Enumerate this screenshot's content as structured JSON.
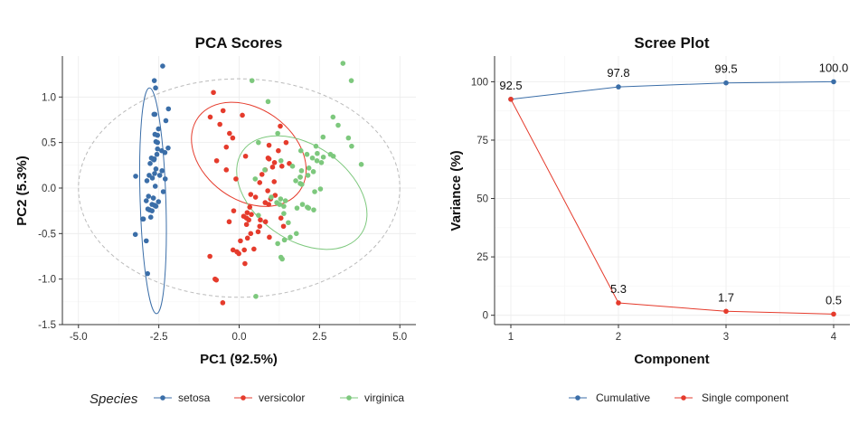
{
  "chart_data": [
    {
      "type": "scatter",
      "title": "PCA Scores",
      "xlabel": "PC1 (92.5%)",
      "ylabel": "PC2 (5.3%)",
      "xlim": [
        -5.5,
        5.5
      ],
      "ylim": [
        -1.5,
        1.45
      ],
      "xticks": [
        "-5.0",
        "-2.5",
        "0.0",
        "2.5",
        "5.0"
      ],
      "yticks": [
        "-1.5",
        "-1.0",
        "-0.5",
        "0.0",
        "0.5",
        "1.0"
      ],
      "grid": true,
      "legend": {
        "title": "Species",
        "placement": "bottom"
      },
      "overall_ellipse": {
        "center": [
          0.0,
          0.0
        ],
        "rx": 5.0,
        "ry": 1.2,
        "angle": 0,
        "style": "dashed",
        "color": "#bbbbbb"
      },
      "series": [
        {
          "name": "setosa",
          "color": "#3b6ea8",
          "ellipse": {
            "center": [
              -2.68,
              -0.14
            ],
            "rx": 0.4,
            "ry": 1.24,
            "angle": 1.8
          },
          "points": [
            [
              -2.68,
              0.32
            ],
            [
              -2.71,
              -0.18
            ],
            [
              -2.89,
              -0.14
            ],
            [
              -2.75,
              -0.32
            ],
            [
              -2.73,
              0.33
            ],
            [
              -2.28,
              0.74
            ],
            [
              -2.82,
              -0.09
            ],
            [
              -2.63,
              0.16
            ],
            [
              -2.89,
              -0.58
            ],
            [
              -2.67,
              -0.11
            ],
            [
              -2.51,
              0.65
            ],
            [
              -2.61,
              0.02
            ],
            [
              -2.79,
              -0.24
            ],
            [
              -3.23,
              -0.51
            ],
            [
              -2.64,
              1.18
            ],
            [
              -2.38,
              1.34
            ],
            [
              -2.62,
              0.81
            ],
            [
              -2.65,
              0.31
            ],
            [
              -2.2,
              0.87
            ],
            [
              -2.59,
              0.51
            ],
            [
              -2.31,
              0.39
            ],
            [
              -2.54,
              0.43
            ],
            [
              -3.22,
              0.13
            ],
            [
              -2.3,
              0.1
            ],
            [
              -2.36,
              -0.04
            ],
            [
              -2.51,
              -0.15
            ],
            [
              -2.47,
              0.14
            ],
            [
              -2.56,
              0.37
            ],
            [
              -2.64,
              0.32
            ],
            [
              -2.63,
              -0.19
            ],
            [
              -2.59,
              -0.2
            ],
            [
              -2.41,
              0.41
            ],
            [
              -2.65,
              0.81
            ],
            [
              -2.6,
              1.1
            ],
            [
              -2.67,
              -0.11
            ],
            [
              -2.87,
              0.08
            ],
            [
              -2.62,
              0.59
            ],
            [
              -2.8,
              0.14
            ],
            [
              -2.98,
              -0.34
            ],
            [
              -2.59,
              0.21
            ],
            [
              -2.77,
              0.27
            ],
            [
              -2.85,
              -0.94
            ],
            [
              -3,
              -0.34
            ],
            [
              -2.4,
              0.19
            ],
            [
              -2.21,
              0.44
            ],
            [
              -2.71,
              -0.25
            ],
            [
              -2.54,
              0.5
            ],
            [
              -2.84,
              -0.23
            ],
            [
              -2.54,
              0.58
            ],
            [
              -2.7,
              0.11
            ]
          ]
        },
        {
          "name": "versicolor",
          "color": "#e53b2c",
          "ellipse": {
            "center": [
              0.3,
              0.37
            ],
            "rx": 1.95,
            "ry": 0.5,
            "angle": -36
          },
          "points": [
            [
              1.28,
              0.68
            ],
            [
              0.93,
              0.32
            ],
            [
              1.46,
              0.5
            ],
            [
              0.18,
              -0.83
            ],
            [
              1.09,
              0.07
            ],
            [
              0.64,
              -0.42
            ],
            [
              1.1,
              0.28
            ],
            [
              -0.75,
              -1.0
            ],
            [
              1.04,
              0.23
            ],
            [
              -0.01,
              -0.72
            ],
            [
              -0.51,
              -1.26
            ],
            [
              0.51,
              -0.1
            ],
            [
              0.26,
              -0.55
            ],
            [
              0.98,
              -0.12
            ],
            [
              -0.17,
              -0.25
            ],
            [
              0.93,
              0.47
            ],
            [
              0.66,
              -0.35
            ],
            [
              0.23,
              -0.33
            ],
            [
              0.94,
              -0.54
            ],
            [
              0.04,
              -0.58
            ],
            [
              1.12,
              -0.08
            ],
            [
              0.36,
              -0.07
            ],
            [
              1.3,
              -0.33
            ],
            [
              0.92,
              -0.18
            ],
            [
              0.71,
              0.15
            ],
            [
              0.9,
              0.33
            ],
            [
              1.33,
              0.24
            ],
            [
              1.56,
              0.27
            ],
            [
              0.81,
              -0.16
            ],
            [
              -0.31,
              -0.37
            ],
            [
              -0.07,
              -0.7
            ],
            [
              -0.19,
              -0.68
            ],
            [
              0.14,
              -0.31
            ],
            [
              1.38,
              -0.42
            ],
            [
              0.59,
              -0.48
            ],
            [
              0.81,
              0.2
            ],
            [
              1.22,
              0.41
            ],
            [
              0.82,
              -0.37
            ],
            [
              0.25,
              -0.27
            ],
            [
              0.16,
              -0.68
            ],
            [
              0.46,
              -0.67
            ],
            [
              0.89,
              -0.03
            ],
            [
              0.23,
              -0.4
            ],
            [
              -0.71,
              -1.01
            ],
            [
              0.36,
              -0.5
            ],
            [
              0.33,
              -0.21
            ],
            [
              0.38,
              -0.29
            ],
            [
              0.64,
              0.06
            ],
            [
              -0.91,
              -0.75
            ],
            [
              0.3,
              -0.35
            ],
            [
              -0.8,
              1.05
            ],
            [
              -0.5,
              0.85
            ],
            [
              -0.3,
              0.6
            ],
            [
              -0.9,
              0.78
            ],
            [
              -0.6,
              0.7
            ],
            [
              -0.4,
              0.45
            ],
            [
              -0.2,
              0.55
            ],
            [
              0.1,
              0.8
            ],
            [
              -0.7,
              0.3
            ],
            [
              -0.4,
              0.2
            ],
            [
              -0.1,
              0.1
            ],
            [
              0.2,
              0.35
            ]
          ]
        },
        {
          "name": "virginica",
          "color": "#7dc87d",
          "ellipse": {
            "center": [
              1.95,
              -0.05
            ],
            "rx": 2.25,
            "ry": 0.52,
            "angle": -35
          },
          "points": [
            [
              2.53,
              -0.01
            ],
            [
              1.41,
              -0.57
            ],
            [
              2.62,
              0.34
            ],
            [
              1.97,
              -0.18
            ],
            [
              2.35,
              -0.04
            ],
            [
              3.4,
              0.55
            ],
            [
              0.52,
              -1.19
            ],
            [
              2.93,
              0.35
            ],
            [
              2.32,
              -0.24
            ],
            [
              2.92,
              0.78
            ],
            [
              1.66,
              0.24
            ],
            [
              1.8,
              -0.22
            ],
            [
              2.17,
              0.22
            ],
            [
              1.34,
              -0.78
            ],
            [
              1.59,
              -0.54
            ],
            [
              1.9,
              0.12
            ],
            [
              1.95,
              0.04
            ],
            [
              3.49,
              1.18
            ],
            [
              3.8,
              0.26
            ],
            [
              1.3,
              -0.76
            ],
            [
              2.43,
              0.38
            ],
            [
              1.2,
              -0.61
            ],
            [
              3.5,
              0.46
            ],
            [
              1.39,
              -0.2
            ],
            [
              2.28,
              0.33
            ],
            [
              2.61,
              0.56
            ],
            [
              1.26,
              -0.18
            ],
            [
              1.29,
              -0.12
            ],
            [
              2.12,
              -0.21
            ],
            [
              2.39,
              0.46
            ],
            [
              2.84,
              0.37
            ],
            [
              3.23,
              1.37
            ],
            [
              2.16,
              -0.22
            ],
            [
              1.44,
              -0.14
            ],
            [
              1.78,
              -0.5
            ],
            [
              3.08,
              0.69
            ],
            [
              2.14,
              0.14
            ],
            [
              1.9,
              0.05
            ],
            [
              1.17,
              -0.16
            ],
            [
              2.11,
              0.37
            ],
            [
              2.31,
              0.18
            ],
            [
              1.92,
              0.41
            ],
            [
              1.41,
              -0.57
            ],
            [
              2.56,
              0.28
            ],
            [
              2.42,
              0.3
            ],
            [
              1.94,
              0.19
            ],
            [
              1.53,
              -0.38
            ],
            [
              1.76,
              0.08
            ],
            [
              1.9,
              0.12
            ],
            [
              1.39,
              -0.28
            ],
            [
              0.4,
              1.18
            ],
            [
              0.9,
              0.95
            ],
            [
              1.2,
              0.6
            ],
            [
              0.6,
              0.5
            ],
            [
              0.5,
              0.1
            ],
            [
              0.8,
              0.2
            ],
            [
              1.3,
              0.3
            ],
            [
              1.0,
              -0.1
            ],
            [
              0.6,
              -0.3
            ]
          ]
        }
      ]
    },
    {
      "type": "line",
      "title": "Scree Plot",
      "xlabel": "Component",
      "ylabel": "Variance (%)",
      "categories": [
        "1",
        "2",
        "3",
        "4"
      ],
      "ylim": [
        -4,
        111
      ],
      "yticks": [
        "0",
        "25",
        "50",
        "75",
        "100"
      ],
      "grid": true,
      "legend": {
        "placement": "bottom"
      },
      "series": [
        {
          "name": "Cumulative",
          "color": "#3b6ea8",
          "values": [
            92.5,
            97.8,
            99.5,
            100.0
          ],
          "labels": [
            "",
            "97.8",
            "99.5",
            "100.0"
          ]
        },
        {
          "name": "Single component",
          "color": "#e53b2c",
          "values": [
            92.5,
            5.3,
            1.7,
            0.5
          ],
          "labels": [
            "92.5",
            "5.3",
            "1.7",
            "0.5"
          ]
        }
      ]
    }
  ]
}
